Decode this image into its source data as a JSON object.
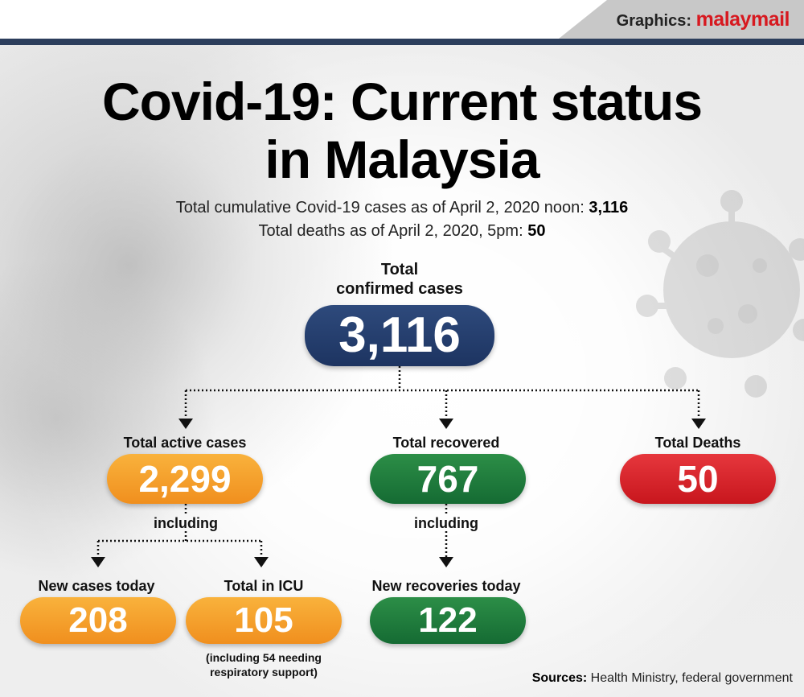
{
  "header": {
    "credit_prefix": "Graphics:",
    "credit_brand": "malaymail"
  },
  "title": {
    "line1": "Covid-19: Current status",
    "line2": "in Malaysia"
  },
  "summary": {
    "cases_text": "Total cumulative Covid-19 cases as of April 2, 2020 noon: ",
    "cases_value": "3,116",
    "deaths_text": "Total deaths as of April 2, 2020, 5pm: ",
    "deaths_value": "50"
  },
  "confirmed": {
    "label_line1": "Total",
    "label_line2": "confirmed cases",
    "value": "3,116"
  },
  "active": {
    "label": "Total active cases",
    "value": "2,299",
    "including": "including"
  },
  "recovered": {
    "label": "Total recovered",
    "value": "767",
    "including": "including"
  },
  "deaths": {
    "label": "Total Deaths",
    "value": "50"
  },
  "new_cases": {
    "label": "New cases today",
    "value": "208"
  },
  "icu": {
    "label": "Total in ICU",
    "value": "105",
    "note_line1": "(including 54 needing",
    "note_line2": "respiratory support)"
  },
  "new_recoveries": {
    "label": "New recoveries today",
    "value": "122"
  },
  "footer": {
    "sources_label": "Sources:",
    "sources_text": " Health Ministry, federal government"
  },
  "colors": {
    "navy": "#1d3461",
    "orange": "#f4a22c",
    "green": "#1c7a3c",
    "red": "#d8232a",
    "brand_red": "#d71920"
  }
}
